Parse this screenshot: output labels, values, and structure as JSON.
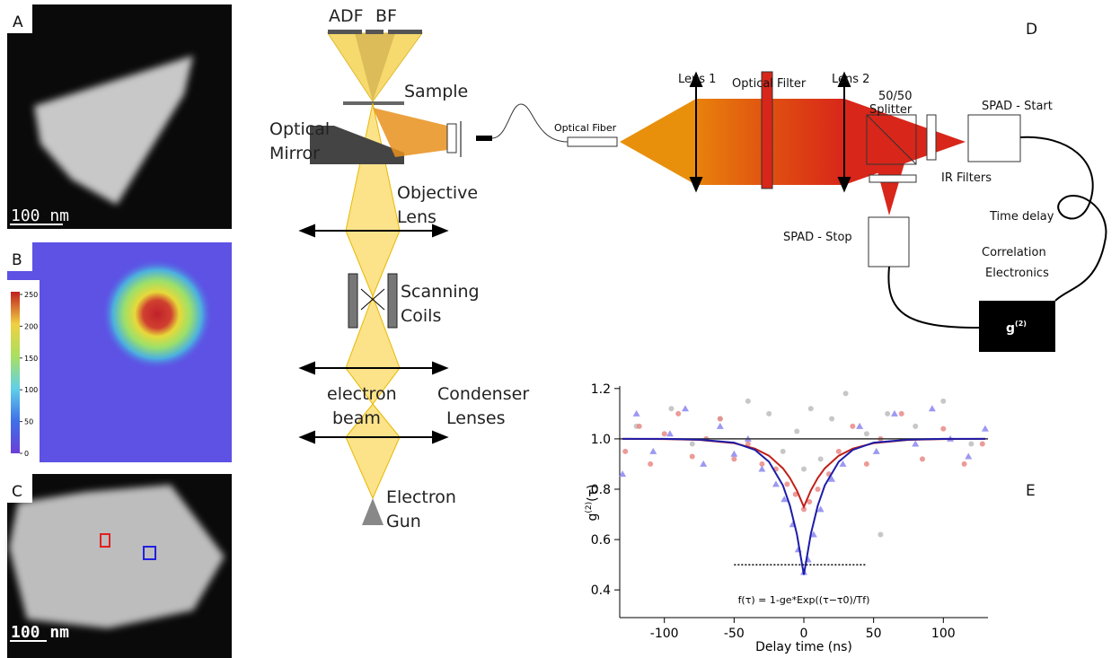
{
  "panels": {
    "a": {
      "label": "A",
      "scale": "100 nm"
    },
    "b": {
      "label": "B",
      "colorbar": {
        "ticks": [
          0,
          50,
          100,
          150,
          200,
          250
        ]
      }
    },
    "c": {
      "label": "C",
      "scale": "100 nm"
    },
    "d": {
      "label": "D"
    },
    "e": {
      "label": "E"
    }
  },
  "microscope": {
    "adf": "ADF",
    "bf": "BF",
    "sample": "Sample",
    "mirror": [
      "Optical",
      "Mirror"
    ],
    "objective": [
      "Objective",
      "Lens"
    ],
    "coils": [
      "Scanning",
      "Coils"
    ],
    "beam": [
      "electron",
      "beam"
    ],
    "condenser": [
      "Condenser",
      "Lenses"
    ],
    "gun": [
      "Electron",
      "Gun"
    ]
  },
  "setup": {
    "fiber": "Optical Fiber",
    "lens1": "Lens 1",
    "filter": "Optical Filter",
    "lens2": "Lens 2",
    "splitter": [
      "50/50",
      "Splitter"
    ],
    "spad_start": "SPAD - Start",
    "ir": "IR Filters",
    "delay": "Time delay",
    "spad_stop": "SPAD - Stop",
    "electronics": [
      "Correlation",
      "Electronics"
    ],
    "g2": {
      "base": "g",
      "sup": "(2)"
    }
  },
  "chart_data": {
    "type": "scatter",
    "xlabel": "Delay time (ns)",
    "ylabel": {
      "base": "g",
      "sup": "(2)",
      "rest": "(τ)"
    },
    "annotation": "f(τ) = 1-ge*Exp((τ−τ0)/Tf)",
    "xlim": [
      -132,
      132
    ],
    "ylim": [
      0.29,
      1.21
    ],
    "xticks": [
      -100,
      -50,
      0,
      50,
      100
    ],
    "yticks": [
      0.4,
      0.6,
      0.8,
      {
        "value": 1,
        "label": "1.0"
      },
      1.2
    ],
    "series": [
      {
        "color": "#bdbdbd",
        "marker": "circle",
        "x": [
          -120,
          -95,
          -80,
          -60,
          -40,
          -25,
          -15,
          -5,
          0,
          5,
          12,
          20,
          30,
          45,
          55,
          60,
          80,
          100,
          120
        ],
        "values": [
          1.05,
          1.12,
          0.98,
          1.08,
          1.15,
          1.1,
          0.95,
          1.03,
          0.88,
          1.12,
          0.92,
          1.08,
          1.18,
          1.02,
          0.62,
          1.1,
          1.05,
          1.15,
          0.98
        ]
      },
      {
        "color": "#e98a86",
        "marker": "circle",
        "x": [
          -128,
          -118,
          -110,
          -100,
          -90,
          -80,
          -70,
          -60,
          -50,
          -40,
          -30,
          -20,
          -12,
          -6,
          0,
          4,
          10,
          18,
          25,
          35,
          45,
          55,
          70,
          85,
          100,
          115,
          128
        ],
        "values": [
          0.95,
          1.05,
          0.9,
          1.02,
          1.1,
          0.93,
          1.0,
          1.08,
          0.92,
          0.98,
          0.9,
          0.88,
          0.82,
          0.78,
          0.72,
          0.75,
          0.8,
          0.86,
          0.95,
          1.05,
          0.9,
          1.0,
          1.1,
          0.92,
          1.04,
          0.9,
          0.98
        ]
      },
      {
        "color": "#8b86f0",
        "marker": "triangle",
        "x": [
          -130,
          -120,
          -108,
          -96,
          -85,
          -72,
          -60,
          -50,
          -40,
          -30,
          -20,
          -14,
          -8,
          -4,
          0,
          3,
          7,
          12,
          20,
          28,
          40,
          52,
          65,
          80,
          92,
          105,
          118,
          130
        ],
        "values": [
          0.86,
          1.1,
          0.95,
          1.02,
          1.12,
          0.9,
          1.05,
          0.94,
          1.0,
          0.88,
          0.82,
          0.76,
          0.66,
          0.56,
          0.47,
          0.52,
          0.62,
          0.72,
          0.84,
          0.9,
          1.05,
          0.95,
          1.1,
          0.98,
          1.12,
          1.0,
          0.93,
          1.04
        ]
      }
    ],
    "fits": [
      {
        "color": "#c0201a",
        "x": [
          -130,
          -100,
          -75,
          -50,
          -35,
          -25,
          -15,
          -10,
          -5,
          0,
          5,
          10,
          15,
          25,
          35,
          50,
          75,
          100,
          130
        ],
        "values": [
          1.0,
          0.999,
          0.996,
          0.983,
          0.961,
          0.933,
          0.883,
          0.845,
          0.795,
          0.73,
          0.795,
          0.845,
          0.883,
          0.933,
          0.961,
          0.983,
          0.996,
          0.999,
          1.0
        ]
      },
      {
        "color": "#1c1ca8",
        "x": [
          -130,
          -100,
          -75,
          -50,
          -35,
          -25,
          -15,
          -10,
          -5,
          0,
          5,
          10,
          15,
          25,
          35,
          50,
          75,
          100,
          130
        ],
        "values": [
          1.0,
          1.0,
          0.997,
          0.985,
          0.956,
          0.909,
          0.815,
          0.735,
          0.622,
          0.46,
          0.622,
          0.735,
          0.815,
          0.909,
          0.956,
          0.985,
          0.997,
          1.0,
          1.0
        ]
      }
    ],
    "reference_lines": [
      {
        "y": 1,
        "x": [
          -132,
          132
        ],
        "color": "#333333",
        "style": "solid"
      },
      {
        "y": 0.5,
        "x": [
          -50,
          45
        ],
        "color": "#000000",
        "style": "dotted"
      }
    ]
  }
}
